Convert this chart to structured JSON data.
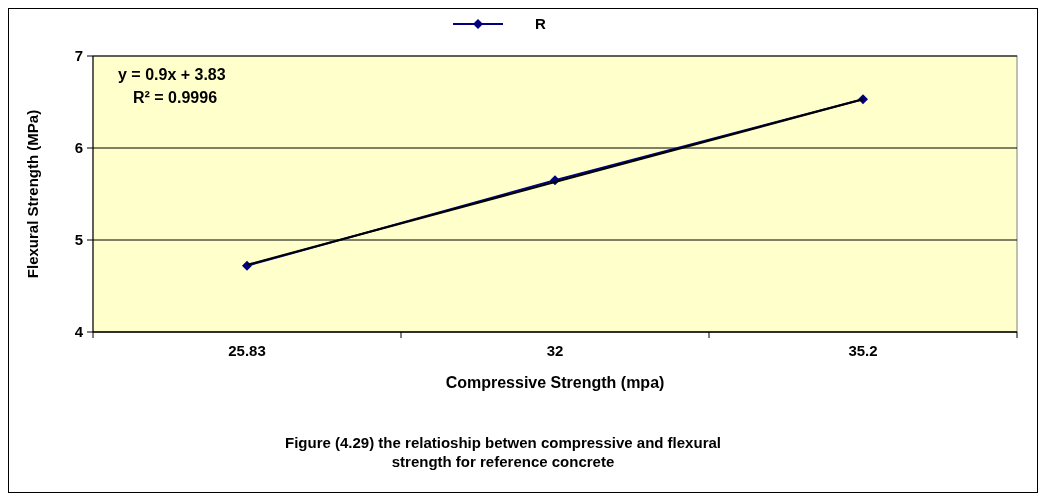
{
  "chart_data": {
    "type": "line",
    "xlabel": "Compressive Strength (mpa)",
    "ylabel": "Flexural Strength (MPa)",
    "categories": [
      "25.83",
      "32",
      "35.2"
    ],
    "series": [
      {
        "name": "R",
        "color": "#000080",
        "values": [
          4.72,
          5.65,
          6.53
        ],
        "marker": "diamond"
      },
      {
        "type": "line",
        "color": "#000000",
        "x": [
          "25.83",
          "32",
          "35.2"
        ],
        "values": [
          4.73,
          5.63,
          6.53
        ],
        "marker": "none"
      }
    ],
    "ylim": [
      4,
      7
    ],
    "yticks": [
      4,
      5,
      6,
      7
    ],
    "grid": "y",
    "legend": "top",
    "annotations": [
      "y = 0.9x + 3.83",
      "R² = 0.9996",
      "Figure (4.29) the relatioship betwen compressive and flexural strength for reference concrete"
    ]
  }
}
